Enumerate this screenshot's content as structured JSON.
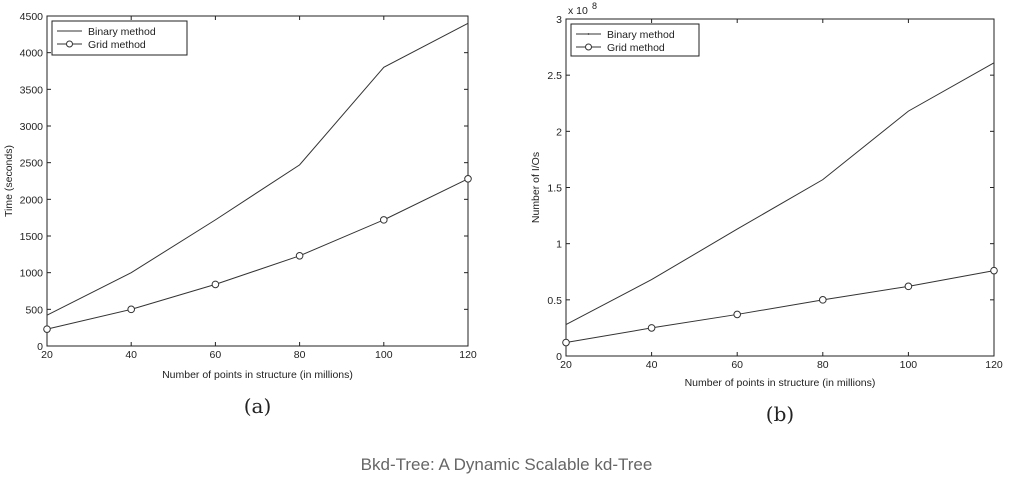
{
  "chart_data": [
    {
      "type": "line",
      "panel_label": "(a)",
      "xlabel": "Number of points in structure (in millions)",
      "ylabel": "Time (seconds)",
      "x": [
        20,
        40,
        60,
        80,
        100,
        120
      ],
      "xlim": [
        20,
        120
      ],
      "ylim": [
        0,
        4500
      ],
      "xticks": [
        "20",
        "40",
        "60",
        "80",
        "100",
        "120"
      ],
      "yticks": [
        "0",
        "500",
        "1000",
        "1500",
        "2000",
        "2500",
        "3000",
        "3500",
        "4000",
        "4500"
      ],
      "legend_position": "top-left",
      "grid": false,
      "series": [
        {
          "name": "Binary method",
          "marker": "none",
          "values": [
            420,
            1000,
            1720,
            2470,
            3800,
            4400
          ]
        },
        {
          "name": "Grid method",
          "marker": "circle",
          "values": [
            230,
            500,
            840,
            1230,
            1720,
            2280
          ]
        }
      ]
    },
    {
      "type": "line",
      "panel_label": "(b)",
      "xlabel": "Number of points in structure (in millions)",
      "ylabel": "Number of I/Os",
      "y_multiplier": "x 10",
      "y_exponent": "8",
      "x": [
        20,
        40,
        60,
        80,
        100,
        120
      ],
      "xlim": [
        20,
        120
      ],
      "ylim": [
        0,
        3
      ],
      "xticks": [
        "20",
        "40",
        "60",
        "80",
        "100",
        "120"
      ],
      "yticks": [
        "0",
        "0.5",
        "1",
        "1.5",
        "2",
        "2.5",
        "3"
      ],
      "legend_position": "top-left",
      "grid": false,
      "series": [
        {
          "name": "Binary method",
          "marker": "point",
          "values": [
            0.28,
            0.68,
            1.13,
            1.57,
            2.18,
            2.61
          ]
        },
        {
          "name": "Grid method",
          "marker": "circle",
          "values": [
            0.12,
            0.25,
            0.37,
            0.5,
            0.62,
            0.76
          ]
        }
      ]
    }
  ],
  "caption": "Bkd-Tree: A Dynamic Scalable kd-Tree"
}
